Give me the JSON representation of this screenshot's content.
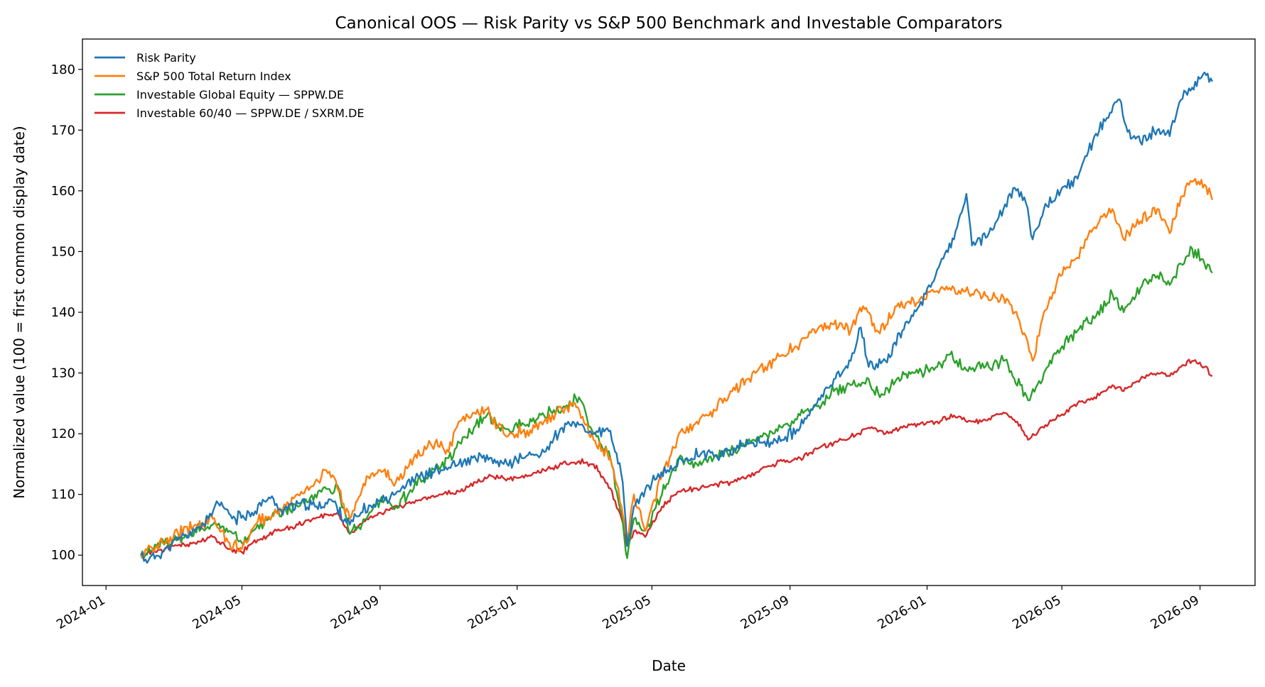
{
  "chart_data": {
    "type": "line",
    "title": "Canonical OOS — Risk Parity vs S&P 500 Benchmark and Investable Comparators",
    "xlabel": "Date",
    "ylabel": "Normalized value (100 = first common display date)",
    "xlim": [
      "2023-12-11",
      "2026-10-20"
    ],
    "ylim": [
      95,
      185
    ],
    "x_ticks": [
      "2024-01",
      "2024-05",
      "2024-09",
      "2025-01",
      "2025-05",
      "2025-09",
      "2026-01",
      "2026-05",
      "2026-09"
    ],
    "y_ticks": [
      100,
      110,
      120,
      130,
      140,
      150,
      160,
      170,
      180
    ],
    "grid": false,
    "legend_position": "upper-left",
    "series": [
      {
        "name": "Risk Parity",
        "color": "#1f77b4",
        "points": [
          [
            "2024-02-01",
            100
          ],
          [
            "2024-02-08",
            99.2
          ],
          [
            "2024-02-20",
            100.5
          ],
          [
            "2024-03-05",
            102.5
          ],
          [
            "2024-03-20",
            104
          ],
          [
            "2024-04-01",
            106
          ],
          [
            "2024-04-10",
            108.5
          ],
          [
            "2024-04-25",
            106
          ],
          [
            "2024-05-10",
            107
          ],
          [
            "2024-05-25",
            109.5
          ],
          [
            "2024-06-05",
            107.5
          ],
          [
            "2024-06-20",
            108.5
          ],
          [
            "2024-07-05",
            108
          ],
          [
            "2024-07-20",
            109
          ],
          [
            "2024-08-05",
            105
          ],
          [
            "2024-08-15",
            107
          ],
          [
            "2024-09-01",
            109
          ],
          [
            "2024-09-20",
            111
          ],
          [
            "2024-10-05",
            113
          ],
          [
            "2024-10-25",
            114
          ],
          [
            "2024-11-10",
            115
          ],
          [
            "2024-12-01",
            116
          ],
          [
            "2024-12-20",
            115
          ],
          [
            "2025-01-05",
            116
          ],
          [
            "2025-01-25",
            117
          ],
          [
            "2025-02-10",
            121
          ],
          [
            "2025-02-25",
            121.5
          ],
          [
            "2025-03-10",
            120
          ],
          [
            "2025-03-25",
            120.5
          ],
          [
            "2025-04-05",
            112
          ],
          [
            "2025-04-09",
            101.5
          ],
          [
            "2025-04-15",
            108
          ],
          [
            "2025-05-01",
            112
          ],
          [
            "2025-05-15",
            114
          ],
          [
            "2025-06-01",
            116
          ],
          [
            "2025-06-15",
            117
          ],
          [
            "2025-07-01",
            116.5
          ],
          [
            "2025-07-20",
            118
          ],
          [
            "2025-08-05",
            118.5
          ],
          [
            "2025-08-25",
            119
          ],
          [
            "2025-09-10",
            121
          ],
          [
            "2025-09-25",
            125
          ],
          [
            "2025-10-10",
            129
          ],
          [
            "2025-10-25",
            132
          ],
          [
            "2025-11-03",
            137.5
          ],
          [
            "2025-11-10",
            131
          ],
          [
            "2025-11-25",
            132
          ],
          [
            "2025-12-10",
            137
          ],
          [
            "2025-12-25",
            141
          ],
          [
            "2026-01-10",
            147
          ],
          [
            "2026-01-25",
            152
          ],
          [
            "2026-02-05",
            159.5
          ],
          [
            "2026-02-10",
            151
          ],
          [
            "2026-02-25",
            153
          ],
          [
            "2026-03-10",
            157
          ],
          [
            "2026-03-20",
            160.5
          ],
          [
            "2026-03-30",
            158
          ],
          [
            "2026-04-05",
            152
          ],
          [
            "2026-04-15",
            157
          ],
          [
            "2026-04-30",
            160
          ],
          [
            "2026-05-15",
            162
          ],
          [
            "2026-05-30",
            169
          ],
          [
            "2026-06-10",
            172
          ],
          [
            "2026-06-20",
            175
          ],
          [
            "2026-06-30",
            170
          ],
          [
            "2026-07-10",
            168
          ],
          [
            "2026-07-25",
            170
          ],
          [
            "2026-08-05",
            169
          ],
          [
            "2026-08-15",
            175
          ],
          [
            "2026-08-25",
            177
          ],
          [
            "2026-09-05",
            179.5
          ],
          [
            "2026-09-12",
            178
          ]
        ]
      },
      {
        "name": "S&P 500 Total Return Index",
        "color": "#ff7f0e",
        "points": [
          [
            "2024-02-01",
            100
          ],
          [
            "2024-02-15",
            101.5
          ],
          [
            "2024-03-01",
            103
          ],
          [
            "2024-03-20",
            105
          ],
          [
            "2024-04-05",
            106
          ],
          [
            "2024-04-20",
            102
          ],
          [
            "2024-05-01",
            101
          ],
          [
            "2024-05-15",
            105.5
          ],
          [
            "2024-06-01",
            107
          ],
          [
            "2024-06-20",
            110
          ],
          [
            "2024-07-05",
            112
          ],
          [
            "2024-07-15",
            114
          ],
          [
            "2024-07-25",
            111
          ],
          [
            "2024-08-05",
            106
          ],
          [
            "2024-08-20",
            113
          ],
          [
            "2024-09-01",
            114
          ],
          [
            "2024-09-15",
            112
          ],
          [
            "2024-10-01",
            116
          ],
          [
            "2024-10-20",
            118.5
          ],
          [
            "2024-11-01",
            117
          ],
          [
            "2024-11-10",
            122
          ],
          [
            "2024-12-05",
            124
          ],
          [
            "2024-12-20",
            120
          ],
          [
            "2025-01-10",
            120.5
          ],
          [
            "2025-01-25",
            122
          ],
          [
            "2025-02-10",
            124
          ],
          [
            "2025-02-20",
            125
          ],
          [
            "2025-03-10",
            119
          ],
          [
            "2025-03-25",
            116
          ],
          [
            "2025-04-04",
            108
          ],
          [
            "2025-04-09",
            103
          ],
          [
            "2025-04-15",
            110
          ],
          [
            "2025-04-25",
            104
          ],
          [
            "2025-05-10",
            113
          ],
          [
            "2025-05-25",
            120
          ],
          [
            "2025-06-10",
            122
          ],
          [
            "2025-06-25",
            124
          ],
          [
            "2025-07-10",
            127
          ],
          [
            "2025-07-25",
            129
          ],
          [
            "2025-08-10",
            131
          ],
          [
            "2025-08-25",
            133
          ],
          [
            "2025-09-10",
            135
          ],
          [
            "2025-09-25",
            137
          ],
          [
            "2025-10-10",
            138
          ],
          [
            "2025-10-25",
            137
          ],
          [
            "2025-11-05",
            141
          ],
          [
            "2025-11-20",
            136.5
          ],
          [
            "2025-12-05",
            141
          ],
          [
            "2025-12-20",
            142
          ],
          [
            "2026-01-10",
            143.5
          ],
          [
            "2026-01-25",
            144
          ],
          [
            "2026-02-10",
            143
          ],
          [
            "2026-02-25",
            142
          ],
          [
            "2026-03-10",
            142.5
          ],
          [
            "2026-03-20",
            140
          ],
          [
            "2026-03-30",
            136
          ],
          [
            "2026-04-05",
            132
          ],
          [
            "2026-04-15",
            140
          ],
          [
            "2026-04-30",
            146
          ],
          [
            "2026-05-15",
            149
          ],
          [
            "2026-05-30",
            154
          ],
          [
            "2026-06-15",
            157
          ],
          [
            "2026-06-25",
            152
          ],
          [
            "2026-07-10",
            155
          ],
          [
            "2026-07-25",
            157
          ],
          [
            "2026-08-05",
            153
          ],
          [
            "2026-08-15",
            159
          ],
          [
            "2026-08-25",
            161.5
          ],
          [
            "2026-09-05",
            161
          ],
          [
            "2026-09-12",
            158.5
          ]
        ]
      },
      {
        "name": "Investable Global Equity — SPPW.DE",
        "color": "#2ca02c",
        "points": [
          [
            "2024-02-01",
            100
          ],
          [
            "2024-02-15",
            101.5
          ],
          [
            "2024-03-01",
            102.5
          ],
          [
            "2024-03-20",
            104
          ],
          [
            "2024-04-05",
            105
          ],
          [
            "2024-04-20",
            104
          ],
          [
            "2024-05-01",
            102
          ],
          [
            "2024-05-15",
            105
          ],
          [
            "2024-06-01",
            107
          ],
          [
            "2024-06-20",
            108
          ],
          [
            "2024-07-05",
            110
          ],
          [
            "2024-07-25",
            111.5
          ],
          [
            "2024-08-05",
            103.5
          ],
          [
            "2024-08-20",
            106
          ],
          [
            "2024-09-01",
            109
          ],
          [
            "2024-09-15",
            108
          ],
          [
            "2024-10-01",
            111
          ],
          [
            "2024-10-20",
            114
          ],
          [
            "2024-11-01",
            116
          ],
          [
            "2024-11-15",
            119.5
          ],
          [
            "2024-12-05",
            123
          ],
          [
            "2024-12-20",
            121
          ],
          [
            "2025-01-10",
            121.5
          ],
          [
            "2025-01-25",
            123
          ],
          [
            "2025-02-10",
            124
          ],
          [
            "2025-02-25",
            126
          ],
          [
            "2025-03-10",
            120
          ],
          [
            "2025-03-25",
            116
          ],
          [
            "2025-04-04",
            107
          ],
          [
            "2025-04-09",
            99.5
          ],
          [
            "2025-04-15",
            106
          ],
          [
            "2025-04-25",
            104
          ],
          [
            "2025-05-10",
            110
          ],
          [
            "2025-05-25",
            116
          ],
          [
            "2025-06-10",
            115
          ],
          [
            "2025-06-25",
            116
          ],
          [
            "2025-07-10",
            117
          ],
          [
            "2025-07-25",
            118.5
          ],
          [
            "2025-08-10",
            120
          ],
          [
            "2025-08-25",
            121
          ],
          [
            "2025-09-10",
            123
          ],
          [
            "2025-09-25",
            124.5
          ],
          [
            "2025-10-10",
            127
          ],
          [
            "2025-10-25",
            128
          ],
          [
            "2025-11-10",
            129
          ],
          [
            "2025-11-20",
            126
          ],
          [
            "2025-12-05",
            129
          ],
          [
            "2025-12-20",
            130
          ],
          [
            "2026-01-10",
            131
          ],
          [
            "2026-01-20",
            133
          ],
          [
            "2026-02-05",
            130.5
          ],
          [
            "2026-02-25",
            131
          ],
          [
            "2026-03-10",
            132
          ],
          [
            "2026-03-25",
            128
          ],
          [
            "2026-04-01",
            125.5
          ],
          [
            "2026-04-15",
            130
          ],
          [
            "2026-04-30",
            134
          ],
          [
            "2026-05-15",
            137
          ],
          [
            "2026-05-30",
            139
          ],
          [
            "2026-06-15",
            143
          ],
          [
            "2026-06-25",
            140
          ],
          [
            "2026-07-10",
            144
          ],
          [
            "2026-07-25",
            146
          ],
          [
            "2026-08-05",
            144.5
          ],
          [
            "2026-08-15",
            148
          ],
          [
            "2026-08-25",
            150.5
          ],
          [
            "2026-09-05",
            148
          ],
          [
            "2026-09-12",
            146.5
          ]
        ]
      },
      {
        "name": "Investable 60/40 — SPPW.DE / SXRM.DE",
        "color": "#d62728",
        "points": [
          [
            "2024-02-01",
            100
          ],
          [
            "2024-02-15",
            100.5
          ],
          [
            "2024-03-01",
            101.5
          ],
          [
            "2024-03-20",
            102
          ],
          [
            "2024-04-05",
            103
          ],
          [
            "2024-04-20",
            101
          ],
          [
            "2024-05-01",
            100.5
          ],
          [
            "2024-05-15",
            102.5
          ],
          [
            "2024-06-01",
            104
          ],
          [
            "2024-06-20",
            105
          ],
          [
            "2024-07-05",
            106
          ],
          [
            "2024-07-25",
            107
          ],
          [
            "2024-08-05",
            103.5
          ],
          [
            "2024-08-20",
            106
          ],
          [
            "2024-09-01",
            107
          ],
          [
            "2024-09-20",
            108
          ],
          [
            "2024-10-10",
            109.5
          ],
          [
            "2024-10-25",
            110
          ],
          [
            "2024-11-10",
            110.5
          ],
          [
            "2024-11-25",
            112
          ],
          [
            "2024-12-10",
            113
          ],
          [
            "2024-12-25",
            112.5
          ],
          [
            "2025-01-10",
            113
          ],
          [
            "2025-01-25",
            114
          ],
          [
            "2025-02-10",
            115
          ],
          [
            "2025-02-25",
            115.5
          ],
          [
            "2025-03-10",
            115
          ],
          [
            "2025-03-25",
            111
          ],
          [
            "2025-04-04",
            106
          ],
          [
            "2025-04-09",
            101.5
          ],
          [
            "2025-04-15",
            104
          ],
          [
            "2025-04-25",
            103
          ],
          [
            "2025-05-10",
            108
          ],
          [
            "2025-05-25",
            110.5
          ],
          [
            "2025-06-10",
            111
          ],
          [
            "2025-06-25",
            111.5
          ],
          [
            "2025-07-10",
            112
          ],
          [
            "2025-07-25",
            113
          ],
          [
            "2025-08-10",
            114.5
          ],
          [
            "2025-08-25",
            115.5
          ],
          [
            "2025-09-10",
            116
          ],
          [
            "2025-09-25",
            117.5
          ],
          [
            "2025-10-10",
            118.5
          ],
          [
            "2025-10-25",
            119.5
          ],
          [
            "2025-11-10",
            121
          ],
          [
            "2025-11-25",
            120
          ],
          [
            "2025-12-10",
            121
          ],
          [
            "2025-12-25",
            121.5
          ],
          [
            "2026-01-10",
            122
          ],
          [
            "2026-01-25",
            123
          ],
          [
            "2026-02-10",
            122
          ],
          [
            "2026-02-25",
            122.5
          ],
          [
            "2026-03-10",
            123.5
          ],
          [
            "2026-03-25",
            121.5
          ],
          [
            "2026-04-01",
            119
          ],
          [
            "2026-04-15",
            121
          ],
          [
            "2026-04-30",
            123
          ],
          [
            "2026-05-15",
            125
          ],
          [
            "2026-05-30",
            126
          ],
          [
            "2026-06-15",
            128
          ],
          [
            "2026-06-25",
            127
          ],
          [
            "2026-07-10",
            129
          ],
          [
            "2026-07-25",
            130
          ],
          [
            "2026-08-05",
            129.5
          ],
          [
            "2026-08-15",
            131
          ],
          [
            "2026-08-25",
            132
          ],
          [
            "2026-09-05",
            131
          ],
          [
            "2026-09-12",
            129.5
          ]
        ]
      }
    ]
  }
}
